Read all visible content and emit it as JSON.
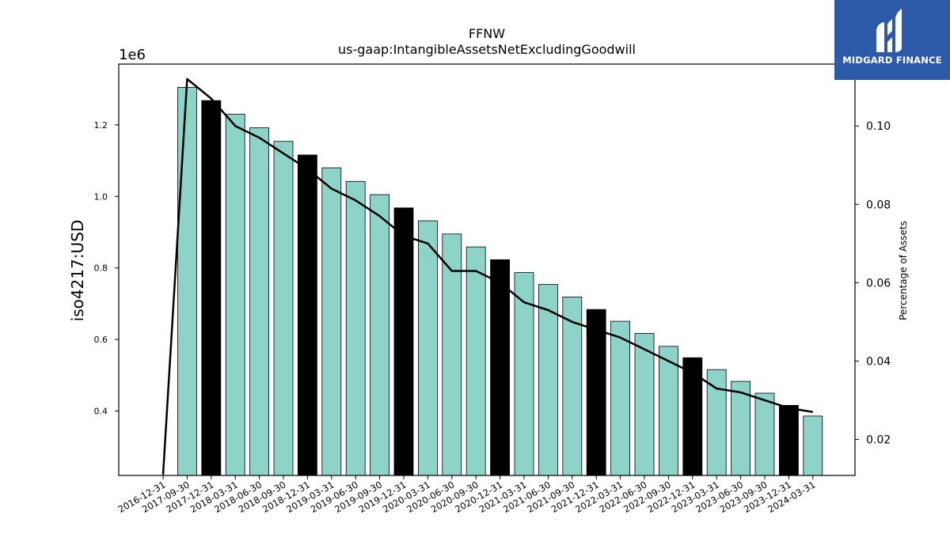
{
  "chart_data": {
    "type": "bar",
    "title": "FFNW",
    "subtitle": "us-gaap:IntangibleAssetsNetExcludingGoodwill",
    "ylabel": "iso4217:USD",
    "y_offset_label": "1e6",
    "y2label": "Percentage of Assets",
    "ylim": [
      220000,
      1370000
    ],
    "y2lim": [
      0.0108,
      0.1158
    ],
    "yticks": [
      "0.4",
      "0.6",
      "0.8",
      "1.0",
      "1.2"
    ],
    "y2ticks": [
      "0.02",
      "0.04",
      "0.06",
      "0.08",
      "0.10"
    ],
    "categories": [
      "2016-12-31",
      "2017-09-30",
      "2017-12-31",
      "2018-03-31",
      "2018-06-30",
      "2018-09-30",
      "2018-12-31",
      "2019-03-31",
      "2019-06-30",
      "2019-09-30",
      "2019-12-31",
      "2020-03-31",
      "2020-06-30",
      "2020-09-30",
      "2020-12-31",
      "2021-03-31",
      "2021-06-30",
      "2021-09-30",
      "2021-12-31",
      "2022-03-31",
      "2022-06-30",
      "2022-09-30",
      "2022-12-31",
      "2023-03-31",
      "2023-06-30",
      "2023-09-30",
      "2023-12-31",
      "2024-03-31"
    ],
    "series": [
      {
        "type": "bar",
        "values": [
          null,
          1305000,
          1268000,
          1230000,
          1192000,
          1154000,
          1116000,
          1080000,
          1042000,
          1005000,
          968000,
          932000,
          895000,
          859000,
          823000,
          787000,
          754000,
          719000,
          684000,
          651000,
          617000,
          581000,
          549000,
          516000,
          483000,
          450000,
          416000,
          386000
        ],
        "colors": [
          "#8dd3c7",
          "#8dd3c7",
          "#000000",
          "#8dd3c7",
          "#8dd3c7",
          "#8dd3c7",
          "#000000",
          "#8dd3c7",
          "#8dd3c7",
          "#8dd3c7",
          "#000000",
          "#8dd3c7",
          "#8dd3c7",
          "#8dd3c7",
          "#000000",
          "#8dd3c7",
          "#8dd3c7",
          "#8dd3c7",
          "#000000",
          "#8dd3c7",
          "#8dd3c7",
          "#8dd3c7",
          "#000000",
          "#8dd3c7",
          "#8dd3c7",
          "#8dd3c7",
          "#000000",
          "#8dd3c7"
        ]
      },
      {
        "type": "line",
        "axis": "right",
        "values": [
          0.011,
          0.112,
          0.107,
          0.1,
          0.097,
          0.093,
          0.089,
          0.084,
          0.081,
          0.077,
          0.072,
          0.07,
          0.063,
          0.063,
          0.06,
          0.055,
          0.053,
          0.05,
          0.048,
          0.046,
          0.043,
          0.04,
          0.037,
          0.033,
          0.032,
          0.03,
          0.028,
          0.027
        ]
      }
    ],
    "colors": {
      "bar": "#8dd3c7",
      "bar_year_end": "#000000",
      "line": "#000000"
    }
  },
  "logo": {
    "text": "MIDGARD FINANCE",
    "color": "#2c5aa8"
  }
}
